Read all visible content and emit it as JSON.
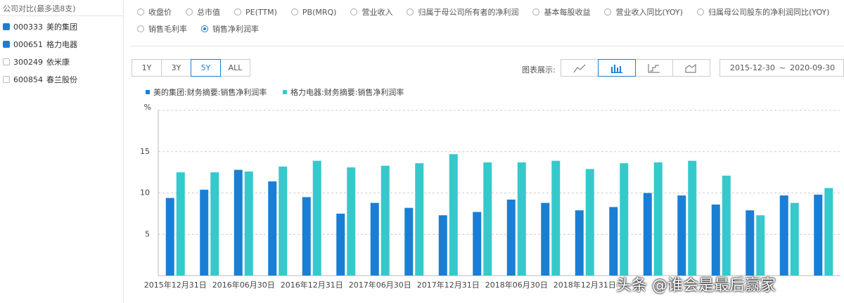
{
  "sidebar": {
    "title": "公司对比(最多选8支)",
    "items": [
      {
        "code": "000333",
        "name": "美的集团",
        "checked": true
      },
      {
        "code": "000651",
        "name": "格力电器",
        "checked": true
      },
      {
        "code": "300249",
        "name": "依米康",
        "checked": false
      },
      {
        "code": "600854",
        "name": "春兰股份",
        "checked": false
      }
    ]
  },
  "indicators": {
    "options": [
      "收盘价",
      "总市值",
      "PE(TTM)",
      "PB(MRQ)",
      "营业收入",
      "归属于母公司所有者的净利润",
      "基本每股收益",
      "营业收入同比(YOY)",
      "归属母公司股东的净利润同比(YOY)",
      "销售毛利率",
      "销售净利润率"
    ],
    "selected": 10
  },
  "range_buttons": {
    "options": [
      "1Y",
      "3Y",
      "5Y",
      "ALL"
    ],
    "selected": 2
  },
  "chart_display_label": "图表展示:",
  "date_range": {
    "start": "2015-12-30",
    "separator": "~",
    "end": "2020-09-30"
  },
  "watermark": "头条 @谁会是最后赢家",
  "chart_data": {
    "type": "bar",
    "y_label": "%",
    "categories": [
      "2015年12月31日",
      null,
      "2016年06月30日",
      null,
      "2016年12月31日",
      null,
      "2017年06月30日",
      null,
      "2017年12月31日",
      null,
      "2018年06月30日",
      null,
      "2018年12月31日",
      null,
      null,
      null,
      null,
      null,
      null,
      null
    ],
    "series": [
      {
        "name": "美的集团:财务摘要:销售净利润率",
        "color": "#1a7fd4",
        "values": [
          9.4,
          10.4,
          12.8,
          11.4,
          9.5,
          7.5,
          8.8,
          8.2,
          7.3,
          7.7,
          9.2,
          8.8,
          7.9,
          8.3,
          10.0,
          9.7,
          8.6,
          7.9,
          9.7,
          9.8
        ]
      },
      {
        "name": "格力电器:财务摘要:销售净利润率",
        "color": "#36c9cc",
        "values": [
          12.5,
          12.5,
          12.6,
          13.2,
          13.9,
          13.1,
          13.3,
          13.6,
          14.7,
          13.7,
          13.7,
          13.9,
          12.9,
          13.6,
          13.7,
          13.9,
          12.1,
          7.3,
          8.8,
          10.6
        ]
      }
    ],
    "ylim": [
      0,
      20
    ],
    "yticks": [
      5,
      10,
      15
    ],
    "grid": true
  }
}
